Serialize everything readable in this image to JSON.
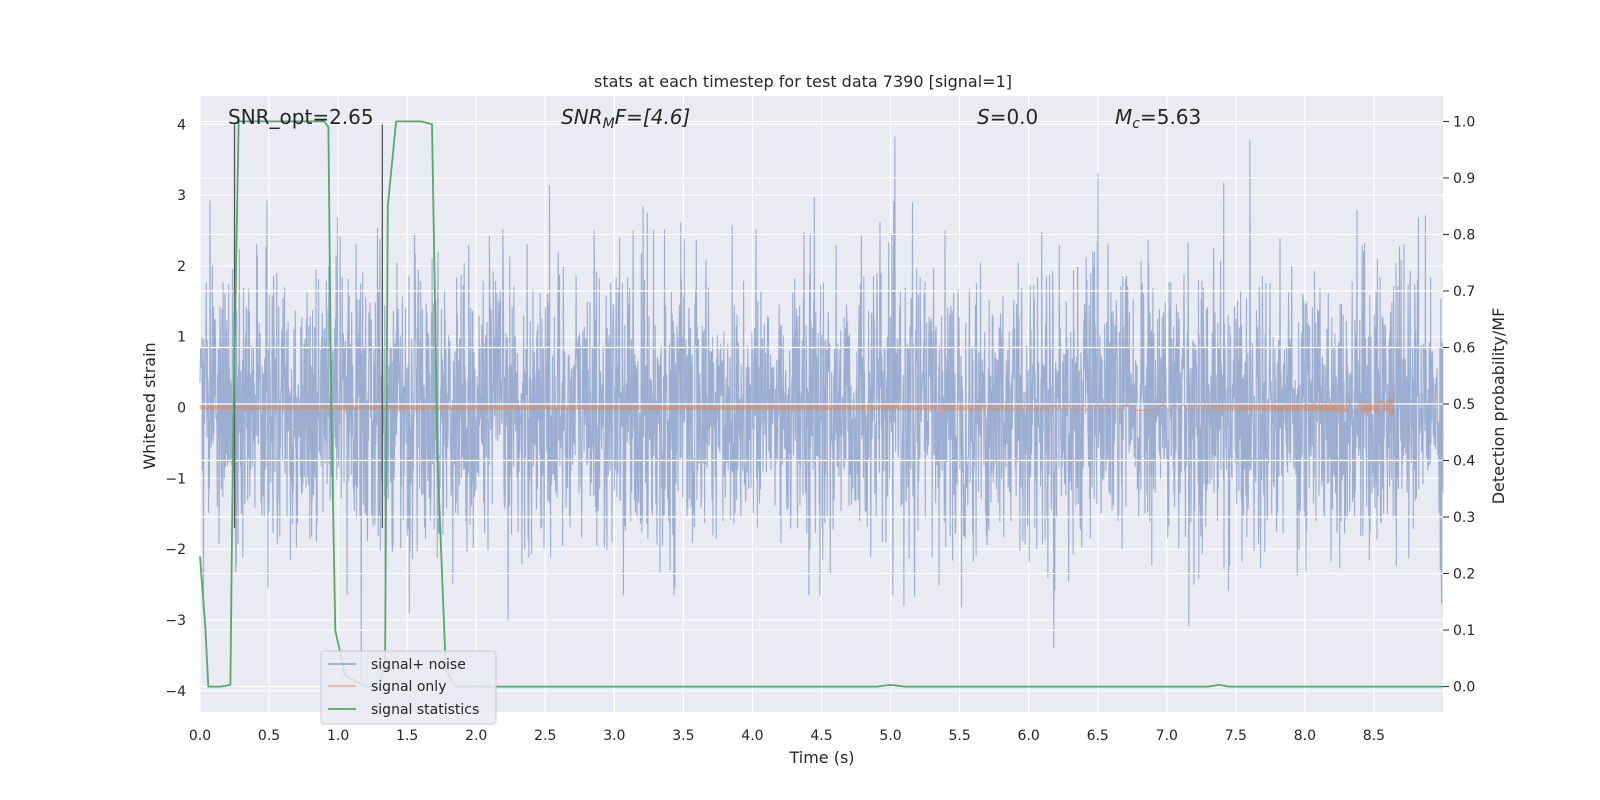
{
  "chart_data": {
    "type": "line",
    "title": "stats at each timestep for test data 7390 [signal=1]",
    "xlabel": "Time (s)",
    "ylabel": "Whitened strain",
    "y2label": "Detection probability/MF",
    "xlim": [
      0.0,
      9.0
    ],
    "ylim": [
      -4.3,
      4.4
    ],
    "y2lim": [
      -0.045,
      1.045
    ],
    "xticks": [
      "0.0",
      "0.5",
      "1.0",
      "1.5",
      "2.0",
      "2.5",
      "3.0",
      "3.5",
      "4.0",
      "4.5",
      "5.0",
      "5.5",
      "6.0",
      "6.5",
      "7.0",
      "7.5",
      "8.0",
      "8.5"
    ],
    "yticks": [
      "4",
      "3",
      "2",
      "1",
      "0",
      "−1",
      "−2",
      "−3",
      "−4"
    ],
    "y2ticks": [
      "1.0",
      "0.9",
      "0.8",
      "0.7",
      "0.6",
      "0.5",
      "0.4",
      "0.3",
      "0.2",
      "0.1",
      "0.0"
    ],
    "annotations": {
      "snr_opt": "SNR_opt=2.65",
      "snr_mf_sym": "SNR",
      "snr_mf_sub": "M",
      "snr_mf_rest": "F=[4.6]",
      "s_sym": "S",
      "s_rest": "=0.0",
      "mc_sym": "M",
      "mc_sub": "c",
      "mc_rest": "=5.63"
    },
    "legend": {
      "placement": "lower-left",
      "entries": [
        "signal+ noise",
        "signal only",
        "signal statistics"
      ]
    },
    "series": [
      {
        "name": "signal+ noise",
        "axis": "left",
        "color": "#4c72b0",
        "description_stats": {
          "amplitude_rms": 1.0,
          "peak_max": 4.0,
          "peak_min": -3.9,
          "t_start": 0.0,
          "t_end": 9.0
        }
      },
      {
        "name": "signal only",
        "axis": "left",
        "color": "#dd8452",
        "chirp": {
          "t_start": 0.0,
          "t_end": 8.65,
          "final_amplitude": 0.25
        }
      },
      {
        "name": "signal statistics",
        "axis": "right",
        "color": "#55a868",
        "x": [
          0.0,
          0.04,
          0.06,
          0.1,
          0.15,
          0.22,
          0.24,
          0.28,
          0.3,
          0.4,
          0.6,
          0.8,
          0.9,
          0.93,
          0.95,
          0.98,
          1.05,
          1.2,
          1.3,
          1.34,
          1.36,
          1.42,
          1.5,
          1.6,
          1.68,
          1.72,
          1.78,
          1.85,
          2.0,
          3.0,
          4.0,
          4.9,
          5.0,
          5.1,
          6.0,
          7.0,
          7.3,
          7.38,
          7.45,
          8.0,
          8.5,
          9.0
        ],
        "y": [
          0.23,
          0.1,
          0.0,
          0.0,
          0.0,
          0.003,
          0.45,
          1.0,
          1.0,
          1.0,
          1.0,
          1.0,
          1.0,
          0.99,
          0.5,
          0.1,
          0.02,
          0.0,
          0.0,
          0.05,
          0.85,
          1.0,
          1.0,
          1.0,
          0.995,
          0.4,
          0.03,
          0.0,
          0.0,
          0.0,
          0.0,
          0.0,
          0.003,
          0.0,
          0.0,
          0.0,
          0.0,
          0.003,
          0.0,
          0.0,
          0.0,
          0.0
        ]
      }
    ],
    "vertical_markers": [
      {
        "x": 0.25,
        "y_from": 4.0,
        "y_to": -1.7
      },
      {
        "x": 1.32,
        "y_from": 4.0,
        "y_to": -1.7
      }
    ]
  }
}
